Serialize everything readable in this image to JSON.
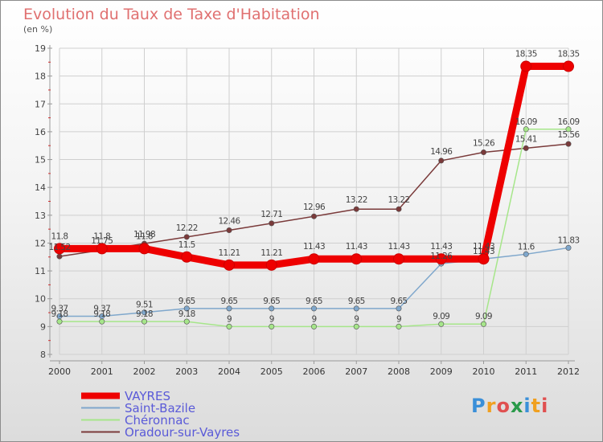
{
  "header": {
    "title": "Evolution du Taux de Taxe d'Habitation",
    "subtitle": "(en %)"
  },
  "logo": {
    "text": "Proxiti"
  },
  "chart_data": {
    "type": "line",
    "title": "Evolution du Taux de Taxe d'Habitation",
    "subtitle": "(en %)",
    "x": [
      "2000",
      "2001",
      "2002",
      "2003",
      "2004",
      "2005",
      "2006",
      "2007",
      "2008",
      "2009",
      "2010",
      "2011",
      "2012"
    ],
    "ylim": [
      8,
      19
    ],
    "yticks": [
      "8",
      "9",
      "10",
      "11",
      "12",
      "13",
      "14",
      "15",
      "16",
      "17",
      "18",
      "19"
    ],
    "grid": true,
    "legend_position": "bottom-left",
    "series": [
      {
        "name": "VAYRES",
        "color": "#ee0000",
        "values": [
          11.8,
          11.8,
          11.8,
          11.5,
          11.21,
          11.21,
          11.43,
          11.43,
          11.43,
          11.43,
          11.43,
          18.35,
          18.35
        ],
        "labels": [
          "11.8",
          "11.8",
          "11.8",
          "11.5",
          "11.21",
          "11.21",
          "11.43",
          "11.43",
          "11.43",
          "11.43",
          "11.43",
          "18.35",
          "18.35"
        ]
      },
      {
        "name": "Saint-Bazile",
        "color": "#7fa7cc",
        "values": [
          9.37,
          9.37,
          9.51,
          9.65,
          9.65,
          9.65,
          9.65,
          9.65,
          9.65,
          11.26,
          11.43,
          11.6,
          11.83
        ],
        "labels": [
          "9.37",
          "9.37",
          "9.51",
          "9.65",
          "9.65",
          "9.65",
          "9.65",
          "9.65",
          "9.65",
          "11.26",
          "11.43",
          "11.6",
          "11.83"
        ]
      },
      {
        "name": "Chéronnac",
        "color": "#a6e68a",
        "values": [
          9.18,
          9.18,
          9.18,
          9.18,
          9,
          9,
          9,
          9,
          9,
          9.09,
          9.09,
          16.09,
          16.09
        ],
        "labels": [
          "9.18",
          "9.18",
          "9.18",
          "9.18",
          "9",
          "9",
          "9",
          "9",
          "9",
          "9.09",
          "9.09",
          "16.09",
          "16.09"
        ]
      },
      {
        "name": "Oradour-sur-Vayres",
        "color": "#7a3a3a",
        "values": [
          11.52,
          11.75,
          11.98,
          12.22,
          12.46,
          12.71,
          12.96,
          13.22,
          13.22,
          14.96,
          15.26,
          15.41,
          15.56
        ],
        "labels": [
          "11.52",
          "11.75",
          "11.98",
          "12.22",
          "12.46",
          "12.71",
          "12.96",
          "13.22",
          "13.22",
          "14.96",
          "15.26",
          "15.41",
          "15.56"
        ]
      }
    ]
  }
}
